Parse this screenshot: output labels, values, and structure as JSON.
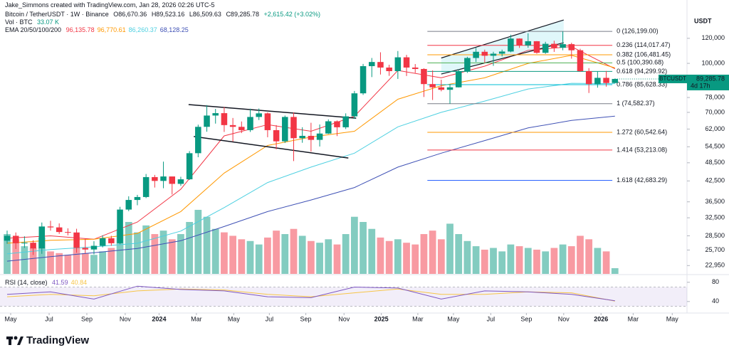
{
  "header": {
    "credit": "Jake_Simmons created with TradingView.com, Jan 28, 2026 02:26 UTC-5"
  },
  "legend": {
    "symbol": "Bitcoin / TetherUSDT · 1W · Binance",
    "open": "O86,670.36",
    "high": "H89,523.16",
    "low": "L86,509.63",
    "close": "C89,285.78",
    "change": "+2,615.42 (+3.02%)",
    "volume_label": "Vol · BTC",
    "volume_value": "33.07 K",
    "ema_label": "EMA 20/50/100/200"
  },
  "footer": {
    "brand": "TradingView"
  },
  "chart_data": {
    "type": "candlestick",
    "log_scale": true,
    "grid": false,
    "unit": "USDT",
    "xlim": [
      -0.82,
      78.3
    ],
    "xticks": [
      {
        "value": 0.41,
        "label": "May"
      },
      {
        "value": 4.84,
        "label": "Jul"
      },
      {
        "value": 9.18,
        "label": "Sep"
      },
      {
        "value": 13.6,
        "label": "Nov"
      },
      {
        "value": 17.5,
        "label": "2024"
      },
      {
        "value": 21.8,
        "label": "Mar"
      },
      {
        "value": 26.1,
        "label": "May"
      },
      {
        "value": 30.2,
        "label": "Jul"
      },
      {
        "value": 34.4,
        "label": "Sep"
      },
      {
        "value": 38.8,
        "label": "Nov"
      },
      {
        "value": 43.1,
        "label": "2025"
      },
      {
        "value": 47.3,
        "label": "Mar"
      },
      {
        "value": 51.4,
        "label": "May"
      },
      {
        "value": 55.7,
        "label": "Jul"
      },
      {
        "value": 59.8,
        "label": "Sep"
      },
      {
        "value": 64.1,
        "label": "Nov"
      },
      {
        "value": 68.4,
        "label": "2026"
      },
      {
        "value": 72.1,
        "label": "Mar"
      },
      {
        "value": 76.6,
        "label": "May"
      }
    ],
    "ylim": [
      21600,
      143000
    ],
    "yticks": [
      {
        "value": 120000,
        "label": "120,000"
      },
      {
        "value": 100000,
        "label": "100,000"
      },
      {
        "value": 78000,
        "label": "78,000"
      },
      {
        "value": 70000,
        "label": "70,000"
      },
      {
        "value": 62000,
        "label": "62,000"
      },
      {
        "value": 54500,
        "label": "54,500"
      },
      {
        "value": 48500,
        "label": "48,500"
      },
      {
        "value": 42500,
        "label": "42,500"
      },
      {
        "value": 36500,
        "label": "36,500"
      },
      {
        "value": 32500,
        "label": "32,500"
      },
      {
        "value": 28500,
        "label": "28,500"
      },
      {
        "value": 25700,
        "label": "25,700"
      },
      {
        "value": 22950,
        "label": "22,950"
      }
    ],
    "up_color": "#089981",
    "down_color": "#f23645",
    "open": [
      27500,
      28500,
      27000,
      27100,
      26000,
      30500,
      30300,
      29300,
      29200,
      26100,
      25800,
      26500,
      28000,
      27000,
      34500,
      37000,
      37800,
      43700,
      42500,
      43900,
      41600,
      43000,
      52000,
      63000,
      68400,
      69600,
      63800,
      63000,
      61500,
      67700,
      69500,
      61500,
      56700,
      67700,
      58000,
      59000,
      57300,
      60000,
      65600,
      62800,
      68000,
      80400,
      98000,
      101000,
      97000,
      94500,
      104500,
      97000,
      96000,
      86000,
      84000,
      82500,
      84000,
      94300,
      104000,
      108800,
      105700,
      107300,
      109000,
      119800,
      114000,
      117500,
      108000,
      115300,
      112000,
      115000,
      110000,
      94500,
      86000,
      90000,
      86670.36
    ],
    "high": [
      29600,
      29200,
      28400,
      27600,
      31400,
      31800,
      31200,
      30100,
      30000,
      27900,
      27400,
      28600,
      28500,
      35200,
      38000,
      38400,
      44700,
      44400,
      48900,
      43900,
      43800,
      52800,
      64000,
      73800,
      71800,
      72800,
      67200,
      65500,
      71900,
      72000,
      70000,
      63800,
      68400,
      70000,
      62800,
      64900,
      64100,
      66500,
      66000,
      69500,
      81800,
      99600,
      104000,
      108400,
      99000,
      109400,
      106400,
      99500,
      96500,
      95000,
      88800,
      86000,
      95700,
      104900,
      111900,
      110500,
      108800,
      110500,
      123200,
      120000,
      124500,
      117600,
      117000,
      117900,
      126200,
      116200,
      111200,
      96600,
      94200,
      94600,
      89523.16
    ],
    "low": [
      26900,
      25900,
      26100,
      24800,
      25000,
      29600,
      28900,
      28600,
      25200,
      25100,
      24900,
      26200,
      26500,
      26800,
      34100,
      35600,
      37500,
      40500,
      40300,
      38500,
      41000,
      42800,
      50500,
      60800,
      64500,
      60700,
      56600,
      60200,
      60700,
      66200,
      58400,
      53500,
      56000,
      49100,
      56100,
      52600,
      54600,
      59800,
      58900,
      62000,
      66800,
      79500,
      90500,
      92200,
      91300,
      89300,
      91200,
      93300,
      78300,
      76600,
      81600,
      74500,
      83900,
      93300,
      101000,
      100400,
      98200,
      105200,
      108400,
      111900,
      112000,
      107300,
      107200,
      108700,
      110000,
      103500,
      94000,
      80600,
      83800,
      84400,
      86509.63
    ],
    "close": [
      28500,
      27000,
      27100,
      26000,
      30500,
      30300,
      29300,
      29200,
      26100,
      25800,
      26500,
      28000,
      27000,
      34500,
      37000,
      37800,
      43700,
      42500,
      43900,
      41600,
      43000,
      52000,
      63000,
      68400,
      69600,
      63800,
      63000,
      61500,
      67700,
      69500,
      61500,
      56700,
      67700,
      58000,
      59000,
      57300,
      60000,
      65600,
      62800,
      68000,
      80400,
      98000,
      101000,
      97000,
      94500,
      104500,
      97000,
      96000,
      86000,
      84000,
      82500,
      84000,
      94300,
      104000,
      108800,
      105700,
      107300,
      109000,
      119800,
      114000,
      117500,
      108000,
      115300,
      112000,
      115000,
      110000,
      94500,
      86000,
      90000,
      86670.36,
      89285.78
    ],
    "price_tag": {
      "symbol": "BTCUSDT",
      "label": "89,285.78",
      "countdown": "4d 17h"
    },
    "volume": {
      "ylim": [
        0,
        1500
      ],
      "values": [
        230,
        200,
        160,
        150,
        210,
        130,
        120,
        110,
        150,
        120,
        110,
        130,
        150,
        260,
        300,
        240,
        280,
        230,
        250,
        200,
        230,
        300,
        370,
        330,
        260,
        240,
        220,
        200,
        190,
        170,
        210,
        250,
        230,
        260,
        220,
        190,
        180,
        200,
        170,
        230,
        330,
        300,
        260,
        210,
        190,
        200,
        180,
        170,
        230,
        250,
        200,
        290,
        230,
        190,
        160,
        140,
        150,
        130,
        170,
        160,
        150,
        140,
        130,
        150,
        170,
        160,
        220,
        200,
        150,
        130,
        33.07
      ]
    },
    "ema": [
      {
        "color": "#f23645",
        "x": [
          0,
          5,
          10,
          15,
          20,
          25,
          30,
          35,
          40,
          45,
          50,
          55,
          60,
          65,
          70
        ],
        "values": [
          28000,
          28500,
          27800,
          31500,
          40000,
          59000,
          64000,
          61000,
          68000,
          95000,
          90000,
          98000,
          110000,
          113000,
          96135.78
        ],
        "last_label": "96,135.78"
      },
      {
        "color": "#ff9800",
        "x": [
          0,
          5,
          10,
          15,
          20,
          25,
          30,
          35,
          40,
          45,
          50,
          55,
          60,
          65,
          70
        ],
        "values": [
          27000,
          27600,
          27800,
          29000,
          34000,
          45000,
          55000,
          58500,
          61000,
          77000,
          85000,
          90000,
          100000,
          106000,
          96770.61
        ],
        "last_label": "96,770.61"
      },
      {
        "color": "#4dd0e1",
        "x": [
          0,
          5,
          10,
          15,
          20,
          25,
          30,
          35,
          40,
          45,
          50,
          55,
          60,
          65,
          70
        ],
        "values": [
          25000,
          25800,
          26300,
          27000,
          29500,
          35000,
          42000,
          47000,
          52000,
          63000,
          70000,
          76000,
          83000,
          86500,
          86260.37
        ],
        "last_label": "86,260.37"
      },
      {
        "color": "#3f51b5",
        "x": [
          0,
          5,
          10,
          15,
          20,
          25,
          30,
          35,
          40,
          45,
          50,
          55,
          60,
          65,
          70
        ],
        "values": [
          23700,
          24500,
          25200,
          26000,
          27500,
          30500,
          34000,
          37000,
          40500,
          47000,
          52000,
          57000,
          62500,
          66000,
          68128.25
        ],
        "last_label": "68,128.25"
      }
    ],
    "fib": {
      "x": [
        48.4,
        69.7
      ],
      "levels": [
        {
          "label": "0 (126,199.00)",
          "value": 126199,
          "color": "#787b86"
        },
        {
          "label": "0.236 (114,017.47)",
          "value": 114017.47,
          "color": "#f23645"
        },
        {
          "label": "0.382 (106,481.45)",
          "value": 106481.45,
          "color": "#ff9800"
        },
        {
          "label": "0.5 (100,390.68)",
          "value": 100390.68,
          "color": "#4caf50"
        },
        {
          "label": "0.618 (94,299.92)",
          "value": 94299.92,
          "color": "#089981"
        },
        {
          "label": "0.786 (85,628.33)",
          "value": 85628.33,
          "color": "#00bcd4"
        },
        {
          "label": "1 (74,582.37)",
          "value": 74582.37,
          "color": "#787b86"
        },
        {
          "label": "1.272 (60,542.64)",
          "value": 60542.64,
          "color": "#ff9800"
        },
        {
          "label": "1.414 (53,213.08)",
          "value": 53213.08,
          "color": "#f23645"
        },
        {
          "label": "1.618 (42,683.29)",
          "value": 42683.29,
          "color": "#2962ff"
        }
      ]
    },
    "trendlines": [
      {
        "x": [
          20.9,
          40.2
        ],
        "values": [
          74100,
          67100
        ]
      },
      {
        "x": [
          21.5,
          39.3
        ],
        "values": [
          58700,
          50200
        ]
      }
    ],
    "channel": {
      "x": [
        50.0,
        64.1
      ],
      "upper": [
        104000,
        137100
      ],
      "lower": [
        92500,
        116200
      ],
      "fill": "rgba(0,188,212,0.12)"
    },
    "rsi": {
      "title": "RSI (14, close)",
      "x": [
        0,
        5,
        10,
        15,
        20,
        25,
        30,
        35,
        40,
        45,
        50,
        55,
        60,
        65,
        70
      ],
      "values": [
        55,
        60,
        45,
        72,
        65,
        62,
        50,
        48,
        70,
        68,
        45,
        62,
        60,
        55,
        41.59
      ],
      "ma": [
        50,
        55,
        52,
        62,
        66,
        64,
        55,
        50,
        58,
        66,
        55,
        55,
        60,
        58,
        40.84
      ],
      "color": "#7e57c2",
      "ma_color": "#f7c548",
      "ylim": [
        19,
        93
      ],
      "yticks": [
        80,
        40
      ],
      "band": [
        30,
        70
      ]
    }
  }
}
